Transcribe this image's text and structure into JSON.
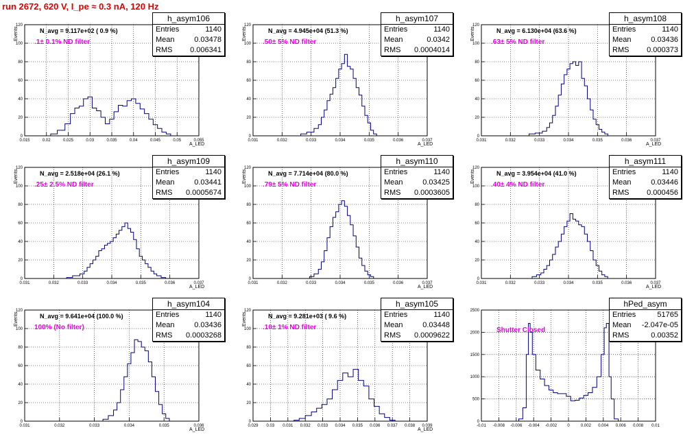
{
  "run_title": "run 2672,   620 V, I_pe ≈ 0.3 nA, 120 Hz",
  "stat_labels": {
    "entries": "Entries",
    "mean": "Mean",
    "rms": "RMS"
  },
  "panels": [
    {
      "name": "h_asym106",
      "entries": "1140",
      "mean": "0.03478",
      "rms": "0.006341",
      "navg": "N_avg = 9.117e+02 ( 0.9 %)",
      "filter": ".1± 0.1% ND filter"
    },
    {
      "name": "h_asym107",
      "entries": "1140",
      "mean": "0.0342",
      "rms": "0.0004014",
      "navg": "N_avg = 4.945e+04 (51.3 %)",
      "filter": ".50± 5% ND filter"
    },
    {
      "name": "h_asym108",
      "entries": "1140",
      "mean": "0.03436",
      "rms": "0.000373",
      "navg": "N_avg = 6.130e+04 (63.6 %)",
      "filter": ".63± 5% ND filter"
    },
    {
      "name": "h_asym109",
      "entries": "1140",
      "mean": "0.03441",
      "rms": "0.0005674",
      "navg": "N_avg = 2.518e+04 (26.1 %)",
      "filter": ".25± 2.5% ND filter"
    },
    {
      "name": "h_asym110",
      "entries": "1140",
      "mean": "0.03425",
      "rms": "0.0003605",
      "navg": "N_avg = 7.714e+04 (80.0 %)",
      "filter": ".79± 5% ND filter"
    },
    {
      "name": "h_asym111",
      "entries": "1140",
      "mean": "0.03446",
      "rms": "0.000456",
      "navg": "N_avg = 3.954e+04 (41.0 %)",
      "filter": ".40± 4% ND filter"
    },
    {
      "name": "h_asym104",
      "entries": "1140",
      "mean": "0.03436",
      "rms": "0.0003268",
      "navg": "N_avg = 9.641e+04 (100.0 %)",
      "filter": "100% (No filter)"
    },
    {
      "name": "h_asym105",
      "entries": "1140",
      "mean": "0.03448",
      "rms": "0.0009622",
      "navg": "N_avg = 9.281e+03 ( 9.6 %)",
      "filter": ".10± 1% ND filter"
    },
    {
      "name": "hPed_asym",
      "entries": "51765",
      "mean": "-2.047e-05",
      "rms": "0.00352",
      "navg": "",
      "filter": "Shutter Closed"
    }
  ],
  "chart_data": [
    {
      "type": "histogram",
      "title": "h_asym106",
      "xlabel": "A_LED",
      "ylabel": "Events",
      "xlim": [
        0.015,
        0.055
      ],
      "ylim": [
        0,
        120
      ],
      "xticks": [
        0.015,
        0.02,
        0.025,
        0.03,
        0.035,
        0.04,
        0.045,
        0.05,
        0.055
      ],
      "yticks": [
        0,
        20,
        40,
        60,
        80,
        100,
        120
      ],
      "x": [
        0.0215,
        0.0235,
        0.025,
        0.026,
        0.027,
        0.028,
        0.029,
        0.03,
        0.031,
        0.032,
        0.033,
        0.034,
        0.035,
        0.036,
        0.037,
        0.038,
        0.039,
        0.04,
        0.041,
        0.042,
        0.043,
        0.044,
        0.045,
        0.046,
        0.047,
        0.048
      ],
      "values": [
        2,
        6,
        13,
        24,
        30,
        32,
        40,
        42,
        30,
        27,
        20,
        13,
        18,
        26,
        33,
        32,
        38,
        40,
        35,
        29,
        24,
        18,
        12,
        8,
        4,
        2
      ]
    },
    {
      "type": "histogram",
      "title": "h_asym107",
      "xlabel": "A_LED",
      "ylabel": "Events",
      "xlim": [
        0.031,
        0.037
      ],
      "ylim": [
        0,
        120
      ],
      "xticks": [
        0.031,
        0.032,
        0.033,
        0.034,
        0.035,
        0.036,
        0.037
      ],
      "yticks": [
        0,
        20,
        40,
        60,
        80,
        100,
        120
      ],
      "x": [
        0.0327,
        0.033,
        0.0332,
        0.0333,
        0.0334,
        0.0335,
        0.0336,
        0.0337,
        0.0338,
        0.0339,
        0.034,
        0.0341,
        0.0342,
        0.0343,
        0.0344,
        0.0345,
        0.0346,
        0.0347,
        0.0348,
        0.0349,
        0.035,
        0.0351,
        0.0352
      ],
      "values": [
        2,
        4,
        8,
        12,
        20,
        28,
        38,
        45,
        52,
        62,
        72,
        78,
        88,
        75,
        72,
        62,
        52,
        44,
        32,
        22,
        14,
        6,
        2
      ]
    },
    {
      "type": "histogram",
      "title": "h_asym108",
      "xlabel": "A_LED",
      "ylabel": "Events",
      "xlim": [
        0.031,
        0.037
      ],
      "ylim": [
        0,
        120
      ],
      "xticks": [
        0.031,
        0.032,
        0.033,
        0.034,
        0.035,
        0.036,
        0.037
      ],
      "yticks": [
        0,
        20,
        40,
        60,
        80,
        100,
        120
      ],
      "x": [
        0.0327,
        0.033,
        0.0332,
        0.0333,
        0.0334,
        0.0335,
        0.0336,
        0.0337,
        0.0338,
        0.0339,
        0.034,
        0.0341,
        0.0342,
        0.0343,
        0.0344,
        0.0345,
        0.0346,
        0.0347,
        0.0348,
        0.0349,
        0.035,
        0.0351,
        0.0352,
        0.0353
      ],
      "values": [
        2,
        3,
        5,
        9,
        14,
        22,
        32,
        44,
        56,
        66,
        72,
        78,
        80,
        76,
        80,
        62,
        54,
        40,
        28,
        18,
        12,
        7,
        4,
        2
      ]
    },
    {
      "type": "histogram",
      "title": "h_asym109",
      "xlabel": "A_LED",
      "ylabel": "Events",
      "xlim": [
        0.031,
        0.037
      ],
      "ylim": [
        0,
        120
      ],
      "xticks": [
        0.031,
        0.032,
        0.033,
        0.034,
        0.035,
        0.036,
        0.037
      ],
      "yticks": [
        0,
        20,
        40,
        60,
        80,
        100,
        120
      ],
      "x": [
        0.0325,
        0.0328,
        0.033,
        0.0331,
        0.0332,
        0.0333,
        0.0334,
        0.0335,
        0.0336,
        0.0337,
        0.0338,
        0.0339,
        0.034,
        0.0341,
        0.0342,
        0.0343,
        0.0344,
        0.0345,
        0.0346,
        0.0347,
        0.0348,
        0.0349,
        0.035,
        0.0351,
        0.0352,
        0.0353,
        0.0354,
        0.0355,
        0.0356,
        0.0358
      ],
      "values": [
        1,
        3,
        5,
        8,
        12,
        16,
        20,
        24,
        30,
        32,
        36,
        38,
        40,
        44,
        48,
        52,
        56,
        60,
        54,
        50,
        42,
        32,
        24,
        20,
        16,
        12,
        8,
        5,
        3,
        1
      ]
    },
    {
      "type": "histogram",
      "title": "h_asym110",
      "xlabel": "A_LED",
      "ylabel": "Events",
      "xlim": [
        0.031,
        0.037
      ],
      "ylim": [
        0,
        120
      ],
      "xticks": [
        0.031,
        0.032,
        0.033,
        0.034,
        0.035,
        0.036,
        0.037
      ],
      "yticks": [
        0,
        20,
        40,
        60,
        80,
        100,
        120
      ],
      "x": [
        0.033,
        0.0332,
        0.0333,
        0.0334,
        0.0335,
        0.0336,
        0.0337,
        0.0338,
        0.0339,
        0.034,
        0.0341,
        0.0342,
        0.0343,
        0.0344,
        0.0345,
        0.0346,
        0.0347,
        0.0348,
        0.0349,
        0.035,
        0.0351
      ],
      "values": [
        2,
        5,
        10,
        18,
        30,
        44,
        56,
        66,
        72,
        80,
        84,
        78,
        68,
        58,
        46,
        34,
        22,
        14,
        8,
        4,
        2
      ]
    },
    {
      "type": "histogram",
      "title": "h_asym111",
      "xlabel": "A_LED",
      "ylabel": "Events",
      "xlim": [
        0.031,
        0.037
      ],
      "ylim": [
        0,
        120
      ],
      "xticks": [
        0.031,
        0.032,
        0.033,
        0.034,
        0.035,
        0.036,
        0.037
      ],
      "yticks": [
        0,
        20,
        40,
        60,
        80,
        100,
        120
      ],
      "x": [
        0.0328,
        0.033,
        0.0331,
        0.0332,
        0.0333,
        0.0334,
        0.0335,
        0.0336,
        0.0337,
        0.0338,
        0.0339,
        0.034,
        0.0341,
        0.0342,
        0.0343,
        0.0344,
        0.0345,
        0.0346,
        0.0347,
        0.0348,
        0.0349,
        0.035,
        0.0351,
        0.0352,
        0.0353
      ],
      "values": [
        2,
        4,
        6,
        10,
        14,
        20,
        26,
        34,
        40,
        48,
        56,
        62,
        70,
        64,
        62,
        58,
        56,
        48,
        40,
        30,
        20,
        14,
        8,
        4,
        2
      ]
    },
    {
      "type": "histogram",
      "title": "h_asym104",
      "xlabel": "A_LED",
      "ylabel": "Events",
      "xlim": [
        0.031,
        0.036
      ],
      "ylim": [
        0,
        120
      ],
      "xticks": [
        0.031,
        0.032,
        0.033,
        0.034,
        0.035,
        0.036
      ],
      "yticks": [
        0,
        20,
        40,
        60,
        80,
        100,
        120
      ],
      "x": [
        0.0333,
        0.0335,
        0.0336,
        0.0337,
        0.0338,
        0.0339,
        0.034,
        0.0341,
        0.0342,
        0.0343,
        0.0344,
        0.0345,
        0.0346,
        0.0347,
        0.0348,
        0.0349,
        0.035,
        0.0351
      ],
      "values": [
        2,
        6,
        12,
        20,
        34,
        48,
        62,
        74,
        88,
        86,
        80,
        76,
        64,
        48,
        32,
        18,
        8,
        3
      ]
    },
    {
      "type": "histogram",
      "title": "h_asym105",
      "xlabel": "A_LED",
      "ylabel": "Events",
      "xlim": [
        0.029,
        0.039
      ],
      "ylim": [
        0,
        120
      ],
      "xticks": [
        0.029,
        0.03,
        0.031,
        0.032,
        0.033,
        0.034,
        0.035,
        0.036,
        0.037,
        0.038,
        0.039
      ],
      "yticks": [
        0,
        20,
        40,
        60,
        80,
        100,
        120
      ],
      "x": [
        0.0315,
        0.0318,
        0.0322,
        0.0325,
        0.0328,
        0.0331,
        0.0334,
        0.0337,
        0.034,
        0.0343,
        0.0346,
        0.0349,
        0.0352,
        0.0355,
        0.0358,
        0.0361,
        0.0364,
        0.0367,
        0.037
      ],
      "values": [
        1,
        3,
        6,
        10,
        14,
        18,
        24,
        34,
        44,
        52,
        48,
        56,
        44,
        38,
        24,
        16,
        8,
        4,
        1
      ]
    },
    {
      "type": "histogram",
      "title": "hPed_asym",
      "xlabel": "",
      "ylabel": "",
      "xlim": [
        -0.01,
        0.01
      ],
      "ylim": [
        0,
        2500
      ],
      "xticks": [
        -0.01,
        -0.008,
        -0.006,
        -0.004,
        -0.002,
        0,
        0.002,
        0.004,
        0.006,
        0.008,
        0.01
      ],
      "yticks": [
        0,
        500,
        1000,
        1500,
        2000,
        2500
      ],
      "x": [
        -0.0055,
        -0.005,
        -0.0047,
        -0.0045,
        -0.0043,
        -0.004,
        -0.0035,
        -0.003,
        -0.0025,
        -0.002,
        -0.0015,
        -0.001,
        -0.0005,
        0,
        0.0005,
        0.001,
        0.0015,
        0.002,
        0.0025,
        0.003,
        0.0035,
        0.004,
        0.0042,
        0.0045,
        0.0048,
        0.005,
        0.0055
      ],
      "values": [
        50,
        300,
        1500,
        2200,
        2000,
        1500,
        1150,
        950,
        800,
        700,
        640,
        620,
        620,
        560,
        460,
        470,
        520,
        580,
        640,
        760,
        1000,
        1500,
        2100,
        2200,
        1000,
        500,
        50
      ]
    }
  ]
}
